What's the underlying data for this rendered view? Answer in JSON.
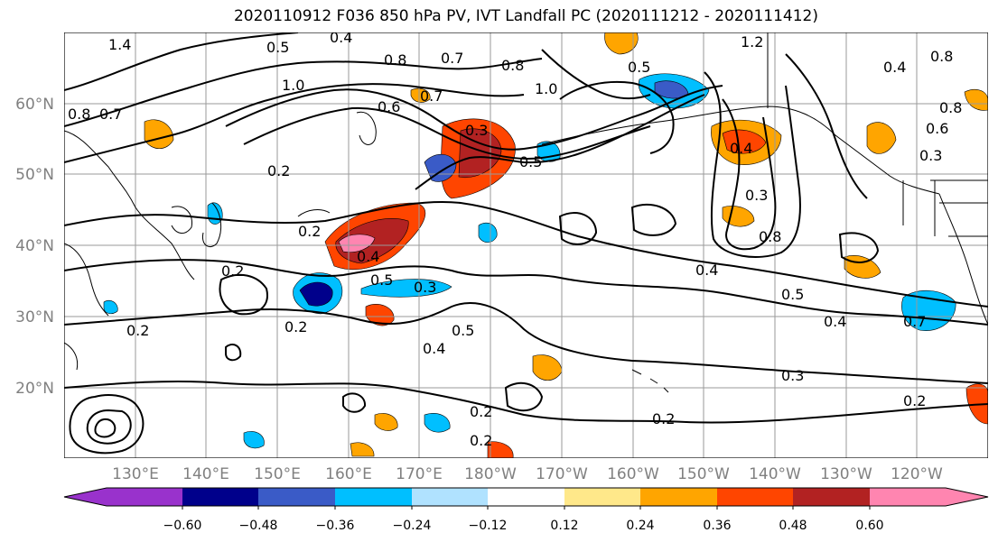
{
  "title": "2020110912 F036 850 hPa PV, IVT Landfall PC (2020111212 - 2020111412)",
  "map": {
    "lat_labels": [
      "60°N",
      "50°N",
      "40°N",
      "30°N",
      "20°N"
    ],
    "lon_labels": [
      "130°E",
      "140°E",
      "150°E",
      "160°E",
      "170°E",
      "180°W",
      "170°W",
      "160°W",
      "150°W",
      "140°W",
      "130°W",
      "120°W"
    ],
    "contour_labels": [
      "1.4",
      "0.4",
      "0.5",
      "0.8",
      "0.7",
      "0.8",
      "1.2",
      "0.8",
      "0.4",
      "0.8",
      "0.7",
      "1.0",
      "0.6",
      "0.7",
      "1.0",
      "0.5",
      "0.3",
      "0.5",
      "0.4",
      "0.3",
      "0.2",
      "0.2",
      "0.4",
      "0.5",
      "0.3",
      "0.2",
      "0.2",
      "0.5",
      "0.4",
      "0.4",
      "0.5",
      "0.4",
      "0.3",
      "0.2",
      "0.2",
      "0.2",
      "0.2",
      "0.2",
      "0.8",
      "0.7",
      "0.6",
      "0.8",
      "0.3"
    ]
  },
  "colorbar": {
    "ticks": [
      "−0.60",
      "−0.48",
      "−0.36",
      "−0.24",
      "−0.12",
      "0.12",
      "0.24",
      "0.36",
      "0.48",
      "0.60"
    ],
    "colors": [
      "#9932CC",
      "#00008B",
      "#3A5BC7",
      "#00BFFF",
      "#B0E2FF",
      "#FFFFFF",
      "#FFE88A",
      "#FFA500",
      "#FF4500",
      "#B22222",
      "#FF85B0"
    ]
  }
}
